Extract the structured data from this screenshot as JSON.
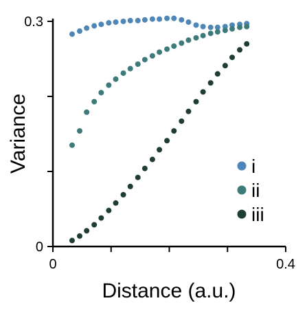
{
  "chart_data": {
    "type": "scatter",
    "xlabel": "Distance (a.u.)",
    "ylabel": "Variance",
    "xlim": [
      0,
      0.4
    ],
    "ylim": [
      0,
      0.3
    ],
    "x_ticks": [
      0,
      0.1,
      0.2,
      0.3,
      0.4
    ],
    "x_tick_labels": [
      "0",
      "",
      "",
      "",
      "0.4"
    ],
    "y_ticks": [
      0,
      0.1,
      0.2,
      0.3
    ],
    "y_tick_labels": [
      "0",
      "",
      "",
      "0.3"
    ],
    "legend_position": "right",
    "series": [
      {
        "name": "i",
        "color": "#4f86b8",
        "x": [
          0.033,
          0.046,
          0.058,
          0.071,
          0.083,
          0.096,
          0.108,
          0.121,
          0.133,
          0.146,
          0.158,
          0.171,
          0.183,
          0.196,
          0.208,
          0.221,
          0.233,
          0.246,
          0.258,
          0.271,
          0.283,
          0.296,
          0.308,
          0.321,
          0.333
        ],
        "y": [
          0.283,
          0.287,
          0.291,
          0.294,
          0.296,
          0.298,
          0.299,
          0.3,
          0.301,
          0.301,
          0.302,
          0.303,
          0.303,
          0.304,
          0.304,
          0.302,
          0.299,
          0.295,
          0.293,
          0.292,
          0.292,
          0.293,
          0.295,
          0.296,
          0.297
        ]
      },
      {
        "name": "ii",
        "color": "#3c7b7a",
        "x": [
          0.033,
          0.046,
          0.058,
          0.071,
          0.083,
          0.096,
          0.108,
          0.121,
          0.133,
          0.146,
          0.158,
          0.171,
          0.183,
          0.196,
          0.208,
          0.221,
          0.233,
          0.246,
          0.258,
          0.271,
          0.283,
          0.296,
          0.308,
          0.321,
          0.333
        ],
        "y": [
          0.135,
          0.154,
          0.179,
          0.193,
          0.205,
          0.215,
          0.223,
          0.231,
          0.237,
          0.243,
          0.249,
          0.254,
          0.259,
          0.263,
          0.267,
          0.271,
          0.275,
          0.278,
          0.281,
          0.284,
          0.286,
          0.288,
          0.29,
          0.292,
          0.293
        ]
      },
      {
        "name": "iii",
        "color": "#1f3d33",
        "x": [
          0.033,
          0.046,
          0.058,
          0.071,
          0.083,
          0.096,
          0.108,
          0.121,
          0.133,
          0.146,
          0.158,
          0.171,
          0.183,
          0.196,
          0.208,
          0.221,
          0.233,
          0.246,
          0.258,
          0.271,
          0.283,
          0.296,
          0.308,
          0.321,
          0.333
        ],
        "y": [
          0.008,
          0.014,
          0.021,
          0.029,
          0.038,
          0.048,
          0.058,
          0.069,
          0.08,
          0.092,
          0.104,
          0.116,
          0.129,
          0.141,
          0.154,
          0.167,
          0.18,
          0.193,
          0.206,
          0.218,
          0.23,
          0.241,
          0.252,
          0.262,
          0.27
        ]
      }
    ]
  }
}
